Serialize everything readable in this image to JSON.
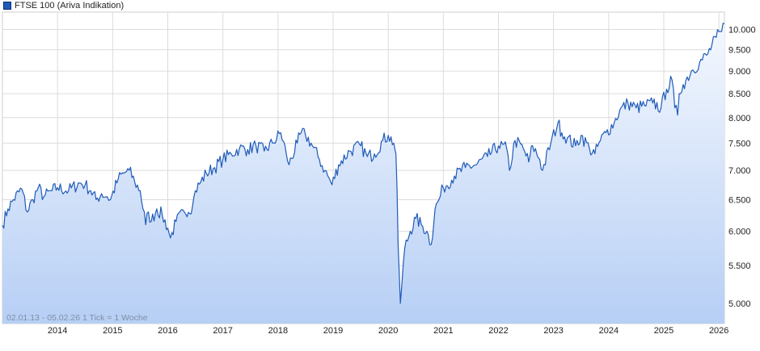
{
  "chart_data": {
    "type": "area",
    "title": "",
    "legend": {
      "label": "FTSE 100 (Ariva Indikation)",
      "position": "top-left"
    },
    "xlabel": "",
    "ylabel": "",
    "x_ticks": [
      "2014",
      "2015",
      "2016",
      "2017",
      "2018",
      "2019",
      "2020",
      "2021",
      "2022",
      "2023",
      "2024",
      "2025",
      "2026"
    ],
    "y_ticks": [
      5000,
      5500,
      6000,
      6500,
      7000,
      7500,
      8000,
      8500,
      9000,
      9500,
      10000
    ],
    "y_tick_labels": [
      "5.000",
      "5.500",
      "6.000",
      "6.500",
      "7.000",
      "7.500",
      "8.000",
      "8.500",
      "9.000",
      "9.500",
      "10.000"
    ],
    "y_scale": "log",
    "ylim": [
      4750,
      10450
    ],
    "xlim": [
      2013.0,
      2026.1
    ],
    "grid": true,
    "footnote": "02.01.13 - 05.02.26    1 Tick = 1 Woche",
    "line_color": "#1f5bb8",
    "fill_top_color": "#f4f8fe",
    "fill_bottom_color": "#b7cff5",
    "series": [
      {
        "x": [
          2013.0,
          2013.1,
          2013.2,
          2013.35,
          2013.45,
          2013.55,
          2013.65,
          2013.75,
          2013.9,
          2014.0,
          2014.2,
          2014.4,
          2014.5,
          2014.6,
          2014.7,
          2014.8,
          2014.9,
          2014.96,
          2015.1,
          2015.2,
          2015.3,
          2015.4,
          2015.5,
          2015.6,
          2015.65,
          2015.7,
          2015.8,
          2015.9,
          2016.0,
          2016.05,
          2016.15,
          2016.3,
          2016.45,
          2016.5,
          2016.6,
          2016.7,
          2016.85,
          2017.0,
          2017.15,
          2017.3,
          2017.45,
          2017.6,
          2017.75,
          2017.9,
          2018.05,
          2018.15,
          2018.2,
          2018.35,
          2018.42,
          2018.5,
          2018.6,
          2018.75,
          2018.85,
          2018.98,
          2019.1,
          2019.3,
          2019.5,
          2019.62,
          2019.75,
          2019.9,
          2020.0,
          2020.1,
          2020.14,
          2020.18,
          2020.2,
          2020.22,
          2020.3,
          2020.4,
          2020.5,
          2020.6,
          2020.7,
          2020.78,
          2020.85,
          2020.92,
          2021.0,
          2021.2,
          2021.4,
          2021.6,
          2021.8,
          2022.0,
          2022.15,
          2022.2,
          2022.3,
          2022.45,
          2022.55,
          2022.62,
          2022.75,
          2022.8,
          2022.95,
          2023.08,
          2023.15,
          2023.25,
          2023.4,
          2023.5,
          2023.65,
          2023.75,
          2023.85,
          2023.95,
          2024.1,
          2024.2,
          2024.35,
          2024.5,
          2024.65,
          2024.8,
          2024.95,
          2025.05,
          2025.15,
          2025.2,
          2025.25,
          2025.28,
          2025.35,
          2025.5,
          2025.65,
          2025.8,
          2025.95,
          2026.05,
          2026.1
        ],
        "values": [
          6090,
          6350,
          6500,
          6680,
          6300,
          6500,
          6700,
          6550,
          6650,
          6700,
          6650,
          6780,
          6750,
          6650,
          6500,
          6600,
          6550,
          6500,
          6850,
          6950,
          7000,
          6800,
          6650,
          6100,
          6300,
          6150,
          6350,
          6250,
          6050,
          5900,
          6150,
          6300,
          6400,
          6650,
          6800,
          6950,
          7050,
          7200,
          7300,
          7400,
          7380,
          7450,
          7350,
          7500,
          7700,
          7300,
          7100,
          7500,
          7700,
          7650,
          7500,
          7200,
          7000,
          6750,
          7100,
          7350,
          7450,
          7250,
          7300,
          7550,
          7650,
          7500,
          7300,
          5800,
          5400,
          5000,
          5750,
          6000,
          6200,
          6100,
          6000,
          5800,
          6350,
          6500,
          6700,
          6900,
          7050,
          7100,
          7250,
          7450,
          7400,
          7000,
          7550,
          7400,
          7150,
          7450,
          7200,
          7000,
          7500,
          7900,
          7700,
          7600,
          7450,
          7650,
          7400,
          7300,
          7550,
          7700,
          7900,
          8150,
          8300,
          8200,
          8250,
          8300,
          8200,
          8600,
          8800,
          8200,
          8050,
          8500,
          8700,
          9000,
          9200,
          9400,
          9800,
          9950,
          10150
        ]
      }
    ]
  }
}
